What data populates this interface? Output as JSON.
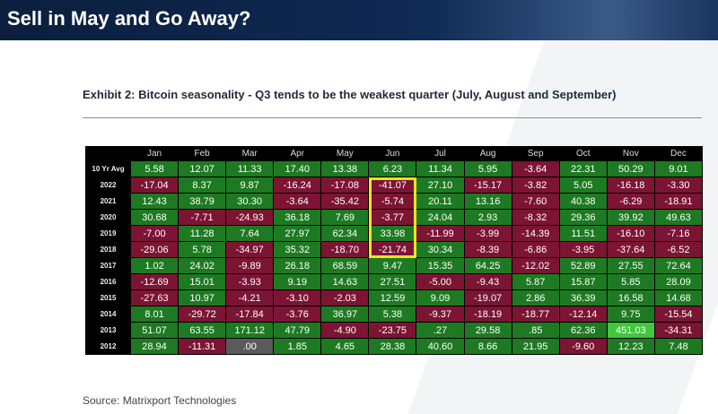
{
  "header": {
    "title": "Sell in May and Go Away?"
  },
  "exhibit": {
    "title": "Exhibit 2: Bitcoin seasonality - Q3 tends to be the weakest quarter (July, August and September)"
  },
  "table": {
    "columns": [
      "Jan",
      "Feb",
      "Mar",
      "Apr",
      "May",
      "Jun",
      "Jul",
      "Aug",
      "Sep",
      "Oct",
      "Nov",
      "Dec"
    ],
    "rows": [
      {
        "label": "10 Yr Avg",
        "cells": [
          "5.58",
          "12.07",
          "11.33",
          "17.40",
          "13.38",
          "6.23",
          "11.34",
          "5.95",
          "-3.64",
          "22.31",
          "50.29",
          "9.01"
        ]
      },
      {
        "label": "2022",
        "cells": [
          "-17.04",
          "8.37",
          "9.87",
          "-16.24",
          "-17.08",
          "-41.07",
          "27.10",
          "-15.17",
          "-3.82",
          "5.05",
          "-16.18",
          "-3.30"
        ]
      },
      {
        "label": "2021",
        "cells": [
          "12.43",
          "38.79",
          "30.30",
          "-3.64",
          "-35.42",
          "-5.74",
          "20.11",
          "13.16",
          "-7.60",
          "40.38",
          "-6.29",
          "-18.91"
        ]
      },
      {
        "label": "2020",
        "cells": [
          "30.68",
          "-7.71",
          "-24.93",
          "36.18",
          "7.69",
          "-3.77",
          "24.04",
          "2.93",
          "-8.32",
          "29.36",
          "39.92",
          "49.63"
        ]
      },
      {
        "label": "2019",
        "cells": [
          "-7.00",
          "11.28",
          "7.64",
          "27.97",
          "62.34",
          "33.98",
          "-11.99",
          "-3.99",
          "-14.39",
          "11.51",
          "-16.10",
          "-7.16"
        ]
      },
      {
        "label": "2018",
        "cells": [
          "-29.06",
          "5.78",
          "-34.97",
          "35.32",
          "-18.70",
          "-21.74",
          "30.34",
          "-8.39",
          "-6.86",
          "-3.95",
          "-37.64",
          "-6.52"
        ]
      },
      {
        "label": "2017",
        "cells": [
          "1.02",
          "24.02",
          "-9.89",
          "26.18",
          "68.59",
          "9.47",
          "15.35",
          "64.25",
          "-12.02",
          "52.89",
          "27.55",
          "72.64"
        ]
      },
      {
        "label": "2016",
        "cells": [
          "-12.69",
          "15.01",
          "-3.93",
          "9.19",
          "14.63",
          "27.51",
          "-5.00",
          "-9.43",
          "5.87",
          "15.87",
          "5.85",
          "28.09"
        ]
      },
      {
        "label": "2015",
        "cells": [
          "-27.63",
          "10.97",
          "-4.21",
          "-3.10",
          "-2.03",
          "12.59",
          "9.09",
          "-19.07",
          "2.86",
          "36.39",
          "16.58",
          "14.68"
        ]
      },
      {
        "label": "2014",
        "cells": [
          "8.01",
          "-29.72",
          "-17.84",
          "-3.76",
          "36.97",
          "5.38",
          "-9.37",
          "-18.19",
          "-18.77",
          "-12.14",
          "9.75",
          "-15.54"
        ]
      },
      {
        "label": "2013",
        "cells": [
          "51.07",
          "63.55",
          "171.12",
          "47.79",
          "-4.90",
          "-23.75",
          ".27",
          "29.58",
          ".85",
          "62.36",
          "451.03",
          "-34.31"
        ]
      },
      {
        "label": "2012",
        "cells": [
          "28.94",
          "-11.31",
          ".00",
          "1.85",
          "4.65",
          "28.38",
          "40.60",
          "8.66",
          "21.95",
          "-9.60",
          "12.23",
          "7.48"
        ]
      }
    ],
    "colors": {
      "positive": "#1e7a22",
      "negative": "#7c1434",
      "zero": "#5a5a5a",
      "max": "#3fc83c"
    },
    "highlight": {
      "column": "Jun",
      "from": "2022",
      "to": "2018",
      "color": "#f4e21a"
    }
  },
  "source": "Source: Matrixport Technologies"
}
